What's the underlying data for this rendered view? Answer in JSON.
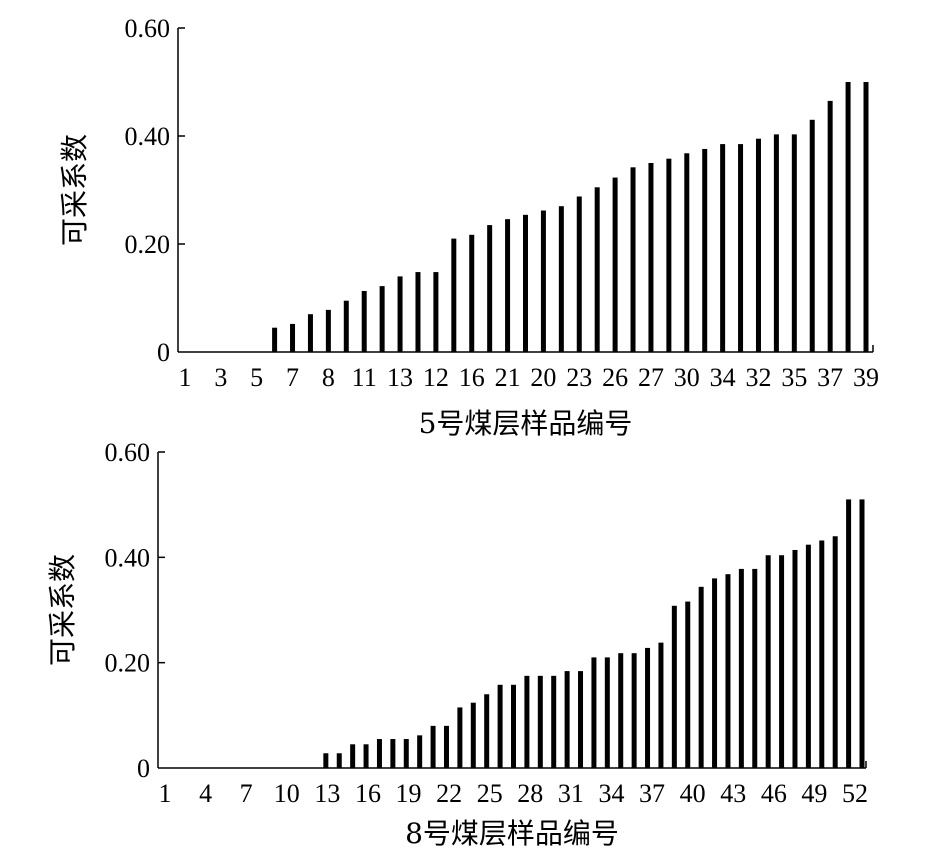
{
  "chart_data": [
    {
      "type": "bar",
      "ylabel": "可采系数",
      "xlabel": "5号煤层样品编号",
      "ylim": [
        0,
        0.6
      ],
      "yticks": [
        "0",
        "0.20",
        "0.40",
        "0.60"
      ],
      "tick_values": [
        0,
        0.2,
        0.4,
        0.6
      ],
      "xtick_labels": [
        "1",
        "3",
        "5",
        "7",
        "8",
        "11",
        "13",
        "12",
        "16",
        "21",
        "20",
        "23",
        "26",
        "27",
        "30",
        "34",
        "32",
        "35",
        "37",
        "39"
      ],
      "series": [
        {
          "values": [
            0,
            0,
            0,
            0,
            0,
            0.045,
            0.052,
            0.07,
            0.078,
            0.095,
            0.113,
            0.122,
            0.14,
            0.148,
            0.148,
            0.21,
            0.217,
            0.235,
            0.246,
            0.254,
            0.262,
            0.27,
            0.288,
            0.305,
            0.323,
            0.342,
            0.35,
            0.358,
            0.368,
            0.376,
            0.385,
            0.385,
            0.395,
            0.403,
            0.403,
            0.43,
            0.465,
            0.5,
            0.5
          ]
        }
      ]
    },
    {
      "type": "bar",
      "ylabel": "可采系数",
      "xlabel": "8号煤层样品编号",
      "ylim": [
        0,
        0.6
      ],
      "yticks": [
        "0",
        "0.20",
        "0.40",
        "0.60"
      ],
      "tick_values": [
        0,
        0.2,
        0.4,
        0.6
      ],
      "xtick_labels": [
        "1",
        "4",
        "7",
        "10",
        "13",
        "16",
        "19",
        "22",
        "25",
        "28",
        "31",
        "34",
        "37",
        "40",
        "43",
        "46",
        "49",
        "52"
      ],
      "series": [
        {
          "values": [
            0,
            0,
            0,
            0,
            0,
            0,
            0,
            0,
            0,
            0,
            0,
            0,
            0.028,
            0.028,
            0.045,
            0.045,
            0.055,
            0.055,
            0.055,
            0.062,
            0.08,
            0.08,
            0.115,
            0.124,
            0.14,
            0.158,
            0.158,
            0.175,
            0.175,
            0.175,
            0.184,
            0.184,
            0.21,
            0.21,
            0.218,
            0.218,
            0.228,
            0.238,
            0.308,
            0.316,
            0.344,
            0.36,
            0.368,
            0.378,
            0.378,
            0.404,
            0.404,
            0.414,
            0.424,
            0.432,
            0.44,
            0.51,
            0.51
          ]
        }
      ]
    }
  ]
}
